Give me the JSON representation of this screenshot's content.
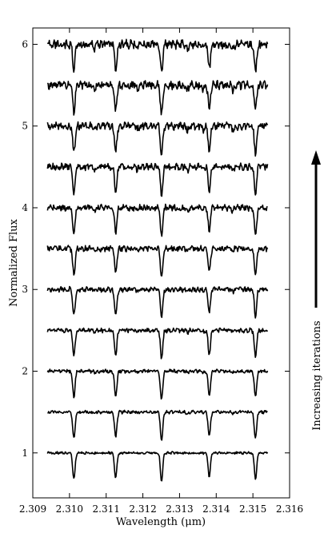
{
  "chart_data": {
    "type": "line",
    "title": "",
    "xlabel": "Wavelength (μm)",
    "ylabel": "Normalized Flux",
    "xlim": [
      2.309,
      2.316
    ],
    "ylim": [
      0.45,
      6.2
    ],
    "xticks": [
      2.309,
      2.31,
      2.311,
      2.312,
      2.313,
      2.314,
      2.315,
      2.316
    ],
    "xtick_labels": [
      "2.309",
      "2.310",
      "2.311",
      "2.312",
      "2.313",
      "2.314",
      "2.315",
      "2.316"
    ],
    "yticks": [
      1,
      2,
      3,
      4,
      5,
      6
    ],
    "ytick_labels": [
      "1",
      "2",
      "3",
      "4",
      "5",
      "6"
    ],
    "grid": false,
    "line_color": "#000000",
    "x_range_data": [
      2.3094,
      2.3154
    ],
    "absorption_lines": [
      {
        "x": 2.31012,
        "depth": 0.32
      },
      {
        "x": 2.31126,
        "depth": 0.31
      },
      {
        "x": 2.31251,
        "depth": 0.35
      },
      {
        "x": 2.31381,
        "depth": 0.29
      },
      {
        "x": 2.31507,
        "depth": 0.32
      }
    ],
    "series": [
      {
        "offset": 1.0
      },
      {
        "offset": 1.5
      },
      {
        "offset": 2.0
      },
      {
        "offset": 2.5
      },
      {
        "offset": 3.0
      },
      {
        "offset": 3.5
      },
      {
        "offset": 4.0
      },
      {
        "offset": 4.5
      },
      {
        "offset": 5.0
      },
      {
        "offset": 5.5
      },
      {
        "offset": 6.0
      }
    ],
    "annotation": {
      "text": "Increasing iterations",
      "arrow_direction": "up"
    }
  }
}
